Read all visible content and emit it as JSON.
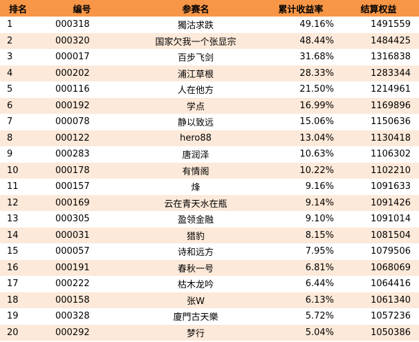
{
  "headers": {
    "rank": "排名",
    "code": "编号",
    "name": "参赛名",
    "return": "累计收益率",
    "equity": "结算权益"
  },
  "rows": [
    {
      "rank": "1",
      "code": "000318",
      "name": "獨沽求跌",
      "return": "49.16%",
      "equity": "1491559"
    },
    {
      "rank": "2",
      "code": "000320",
      "name": "国家欠我一个张显宗",
      "return": "48.44%",
      "equity": "1484425"
    },
    {
      "rank": "3",
      "code": "000017",
      "name": "百步飞剑",
      "return": "31.68%",
      "equity": "1316838"
    },
    {
      "rank": "4",
      "code": "000202",
      "name": "浦江草根",
      "return": "28.33%",
      "equity": "1283344"
    },
    {
      "rank": "5",
      "code": "000116",
      "name": "人在他方",
      "return": "21.50%",
      "equity": "1214961"
    },
    {
      "rank": "6",
      "code": "000192",
      "name": "学点",
      "return": "16.99%",
      "equity": "1169896"
    },
    {
      "rank": "7",
      "code": "000078",
      "name": "静以致远",
      "return": "15.06%",
      "equity": "1150636"
    },
    {
      "rank": "8",
      "code": "000122",
      "name": "hero88",
      "return": "13.04%",
      "equity": "1130418"
    },
    {
      "rank": "9",
      "code": "000283",
      "name": "唐润泽",
      "return": "10.63%",
      "equity": "1106302"
    },
    {
      "rank": "10",
      "code": "000178",
      "name": "有情阁",
      "return": "10.22%",
      "equity": "1102210"
    },
    {
      "rank": "11",
      "code": "000157",
      "name": "烽",
      "return": "9.16%",
      "equity": "1091633"
    },
    {
      "rank": "12",
      "code": "000169",
      "name": "云在青天水在瓶",
      "return": "9.14%",
      "equity": "1091426"
    },
    {
      "rank": "13",
      "code": "000305",
      "name": "盈领金融",
      "return": "9.10%",
      "equity": "1091014"
    },
    {
      "rank": "14",
      "code": "000031",
      "name": "猎豹",
      "return": "8.15%",
      "equity": "1081504"
    },
    {
      "rank": "15",
      "code": "000057",
      "name": "诗和远方",
      "return": "7.95%",
      "equity": "1079506"
    },
    {
      "rank": "16",
      "code": "000191",
      "name": "春秋一号",
      "return": "6.81%",
      "equity": "1068069"
    },
    {
      "rank": "17",
      "code": "000222",
      "name": "枯木龙吟",
      "return": "6.44%",
      "equity": "1064416"
    },
    {
      "rank": "18",
      "code": "000158",
      "name": "张W",
      "return": "6.13%",
      "equity": "1061340"
    },
    {
      "rank": "19",
      "code": "000328",
      "name": "廈門古天樂",
      "return": "5.72%",
      "equity": "1057236"
    },
    {
      "rank": "20",
      "code": "000292",
      "name": "梦行",
      "return": "5.04%",
      "equity": "1050386"
    }
  ],
  "colors": {
    "header_bg": "#f79646",
    "stripe_bg": "#fde9d9"
  }
}
